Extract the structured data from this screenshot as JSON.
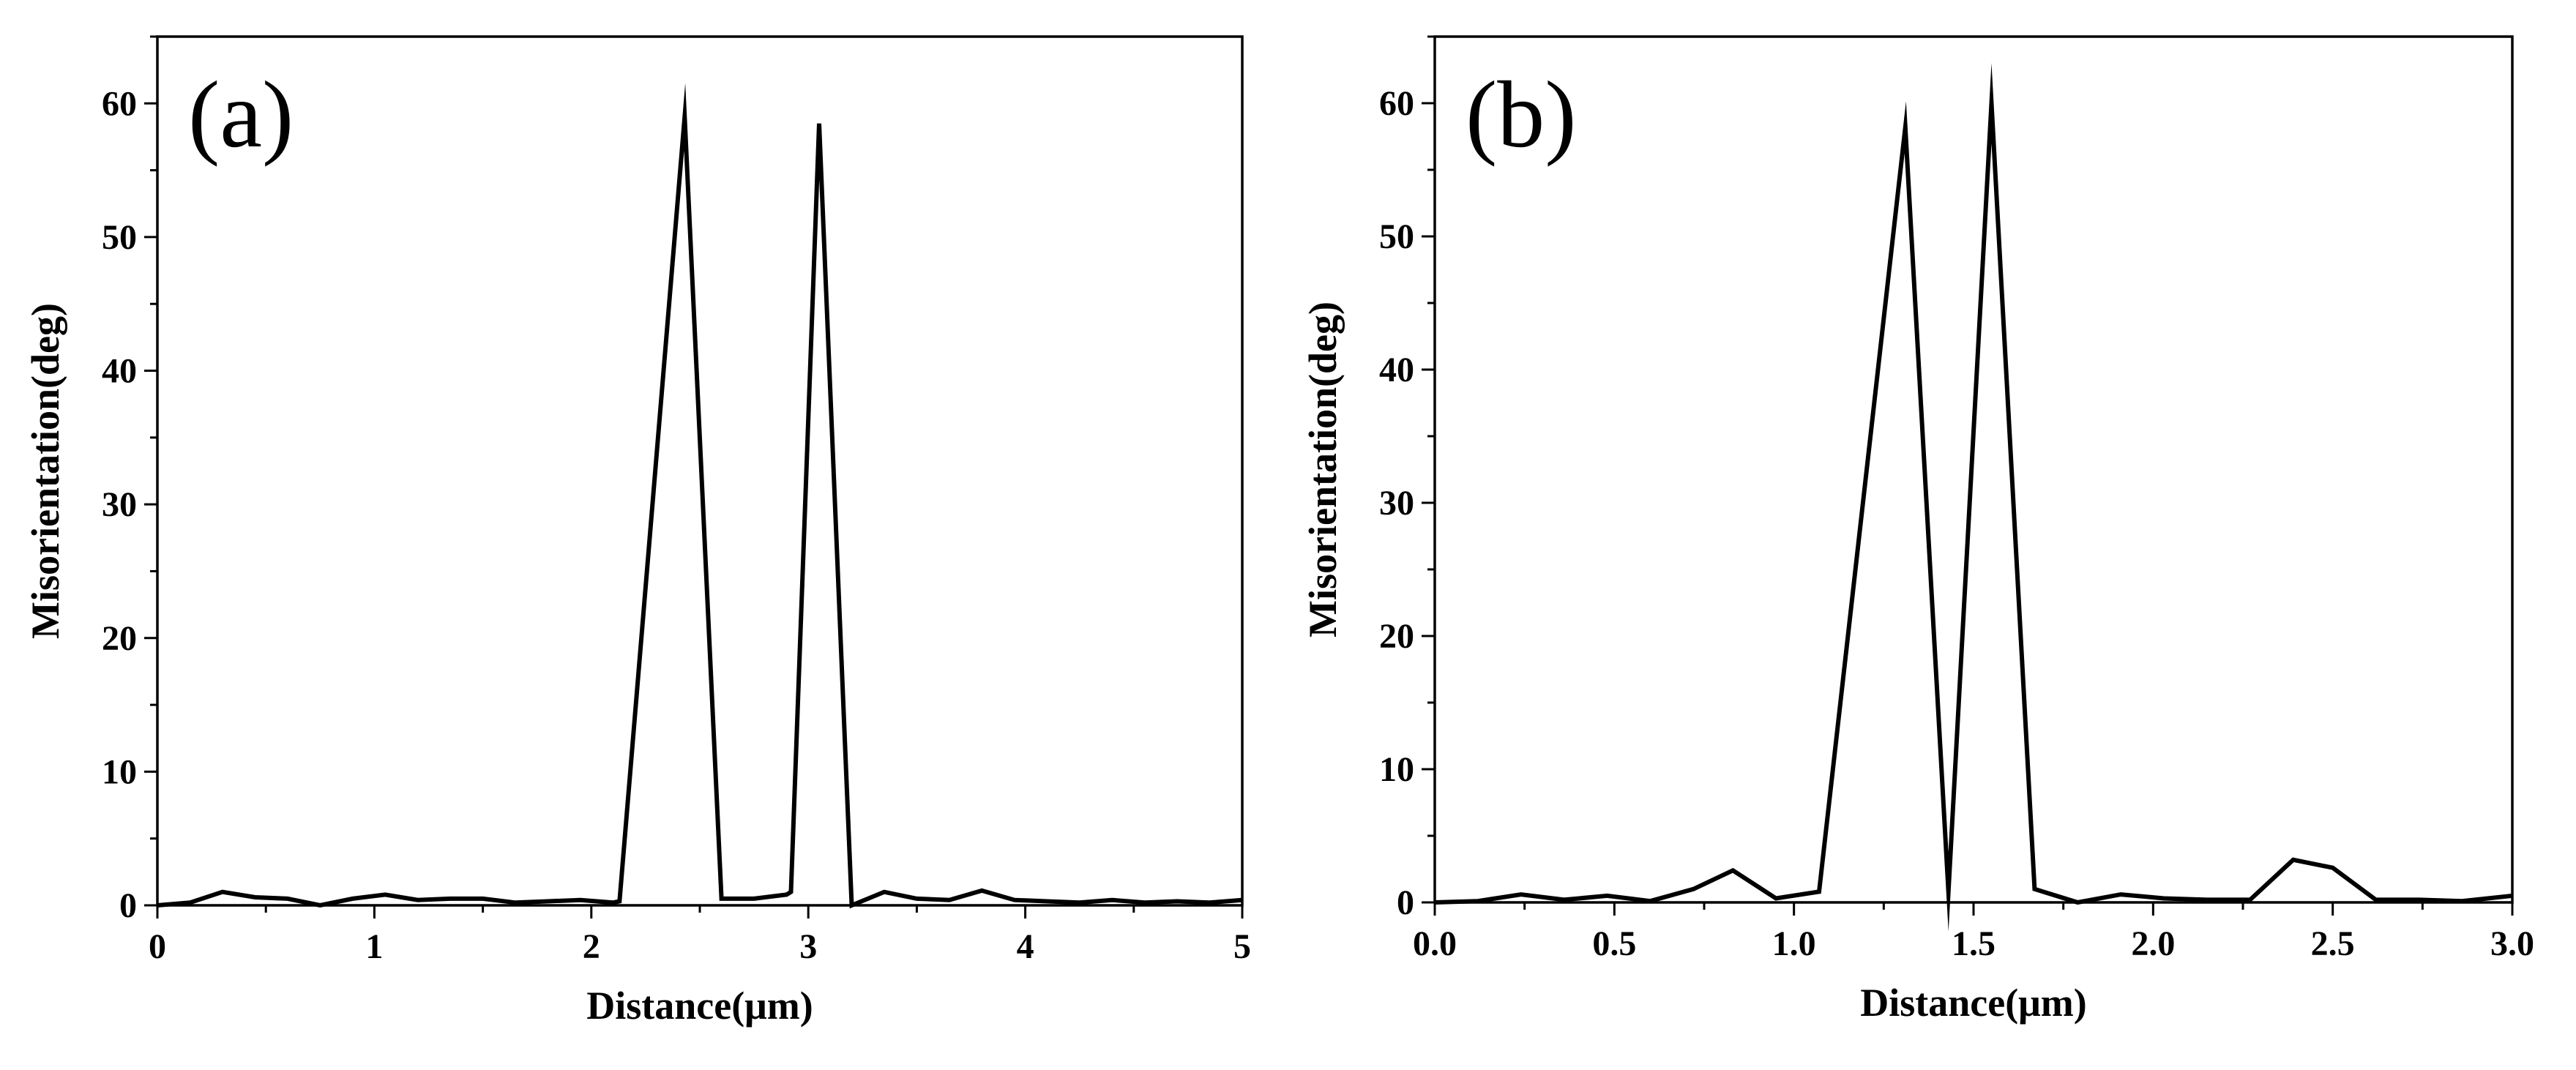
{
  "chart_data": [
    {
      "type": "line",
      "panel_label": "(a)",
      "xlabel": "Distance(μm)",
      "ylabel": "Misorientation(deg)",
      "xlim": [
        0,
        5
      ],
      "ylim": [
        0,
        65
      ],
      "xticks": [
        0,
        1,
        2,
        3,
        4,
        5
      ],
      "xtick_labels": [
        "0",
        "1",
        "2",
        "3",
        "4",
        "5"
      ],
      "yticks": [
        0,
        10,
        20,
        30,
        40,
        50,
        60
      ],
      "ytick_labels": [
        "0",
        "10",
        "20",
        "30",
        "40",
        "50",
        "60"
      ],
      "grid": false,
      "x": [
        0,
        0.15,
        0.3,
        0.45,
        0.6,
        0.75,
        0.9,
        1.05,
        1.2,
        1.35,
        1.5,
        1.65,
        1.8,
        1.95,
        2.1,
        2.13,
        2.43,
        2.6,
        2.75,
        2.9,
        2.92,
        3.05,
        3.2,
        3.35,
        3.5,
        3.65,
        3.8,
        3.95,
        4.1,
        4.25,
        4.4,
        4.55,
        4.7,
        4.85,
        5.0
      ],
      "y": [
        0,
        0.2,
        1.0,
        0.6,
        0.5,
        0,
        0.5,
        0.8,
        0.4,
        0.5,
        0.5,
        0.2,
        0.3,
        0.4,
        0.2,
        0.3,
        59.0,
        0.5,
        0.5,
        0.8,
        1.0,
        58.5,
        0,
        1.0,
        0.5,
        0.4,
        1.1,
        0.4,
        0.3,
        0.2,
        0.4,
        0.2,
        0.3,
        0.2,
        0.4
      ]
    },
    {
      "type": "line",
      "panel_label": "(b)",
      "xlabel": "Distance(μm)",
      "ylabel": "Misorientation(deg)",
      "xlim": [
        0,
        3
      ],
      "ylim": [
        0,
        65
      ],
      "xticks": [
        0,
        0.5,
        1.0,
        1.5,
        2.0,
        2.5,
        3.0
      ],
      "xtick_labels": [
        "0.0",
        "0.5",
        "1.0",
        "1.5",
        "2.0",
        "2.5",
        "3.0"
      ],
      "yticks": [
        0,
        10,
        20,
        30,
        40,
        50,
        60
      ],
      "ytick_labels": [
        "0",
        "10",
        "20",
        "30",
        "40",
        "50",
        "60"
      ],
      "grid": false,
      "x": [
        0,
        0.12,
        0.24,
        0.36,
        0.48,
        0.6,
        0.72,
        0.83,
        0.95,
        1.07,
        1.31,
        1.43,
        1.55,
        1.67,
        1.79,
        1.91,
        2.03,
        2.15,
        2.27,
        2.39,
        2.5,
        2.62,
        2.74,
        2.86,
        3.0
      ],
      "y": [
        0,
        0.1,
        0.6,
        0.2,
        0.5,
        0.1,
        1.0,
        2.4,
        0.3,
        0.8,
        58.2,
        0.8,
        60.0,
        1.0,
        0,
        0.6,
        0.3,
        0.2,
        0.2,
        3.2,
        2.6,
        0.2,
        0.2,
        0.1,
        0.5
      ]
    }
  ]
}
